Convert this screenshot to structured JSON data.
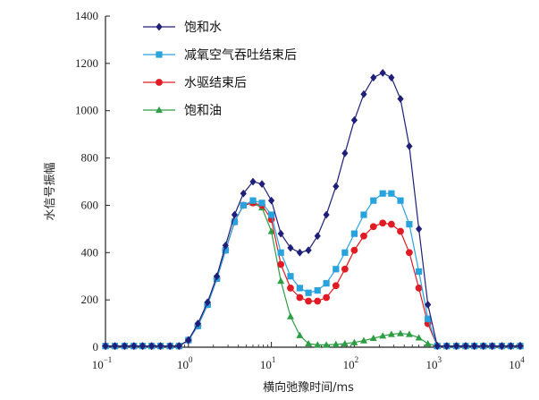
{
  "chart_data": {
    "type": "line",
    "xscale": "log",
    "xlim": [
      0.1,
      10000
    ],
    "ylim": [
      0,
      1400
    ],
    "yticks": [
      0,
      200,
      400,
      600,
      800,
      1000,
      1200,
      1400
    ],
    "xticks": [
      {
        "value": 0.1,
        "base": "10",
        "exp": "−1"
      },
      {
        "value": 1,
        "base": "10",
        "exp": "0"
      },
      {
        "value": 10,
        "base": "10",
        "exp": "1"
      },
      {
        "value": 100,
        "base": "10",
        "exp": "2"
      },
      {
        "value": 1000,
        "base": "10",
        "exp": "3"
      },
      {
        "value": 10000,
        "base": "10",
        "exp": "4"
      }
    ],
    "xlabel": "横向弛豫时间/ms",
    "ylabel": "水信号振幅",
    "legend_position": "top-left",
    "x": [
      0.1,
      0.13,
      0.17,
      0.22,
      0.28,
      0.36,
      0.46,
      0.6,
      0.77,
      1.0,
      1.3,
      1.7,
      2.2,
      2.8,
      3.6,
      4.6,
      6.0,
      7.7,
      10,
      13,
      17,
      22,
      28,
      36,
      46,
      60,
      77,
      100,
      130,
      170,
      220,
      280,
      360,
      460,
      600,
      770,
      1000,
      1300,
      1700,
      2200,
      2800,
      3600,
      4600,
      6000,
      7700,
      10000
    ],
    "series": [
      {
        "name": "饱和水",
        "color": "#1f1f7a",
        "marker": "diamond",
        "values": [
          5,
          5,
          5,
          5,
          5,
          5,
          5,
          5,
          5,
          30,
          100,
          190,
          300,
          430,
          560,
          650,
          700,
          690,
          620,
          480,
          420,
          400,
          410,
          470,
          560,
          680,
          820,
          960,
          1070,
          1140,
          1160,
          1140,
          1050,
          850,
          500,
          180,
          5,
          5,
          5,
          5,
          5,
          5,
          5,
          5,
          5,
          5
        ]
      },
      {
        "name": "减氧空气吞吐结束后",
        "color": "#29a3dd",
        "marker": "square",
        "values": [
          5,
          5,
          5,
          5,
          5,
          5,
          5,
          5,
          5,
          30,
          90,
          180,
          290,
          410,
          530,
          600,
          620,
          610,
          560,
          400,
          300,
          250,
          230,
          240,
          270,
          330,
          400,
          480,
          560,
          620,
          650,
          650,
          620,
          520,
          320,
          120,
          5,
          5,
          5,
          5,
          5,
          5,
          5,
          5,
          5,
          5
        ]
      },
      {
        "name": "水驱结束后",
        "color": "#e01b24",
        "marker": "circle",
        "values": [
          5,
          5,
          5,
          5,
          5,
          5,
          5,
          5,
          5,
          30,
          90,
          180,
          290,
          410,
          530,
          600,
          610,
          600,
          540,
          350,
          250,
          210,
          195,
          195,
          210,
          260,
          330,
          410,
          470,
          510,
          525,
          520,
          490,
          400,
          250,
          100,
          5,
          5,
          5,
          5,
          5,
          5,
          5,
          5,
          5,
          5
        ]
      },
      {
        "name": "饱和油",
        "color": "#2e9e44",
        "marker": "triangle",
        "values": [
          5,
          5,
          5,
          5,
          5,
          5,
          5,
          5,
          5,
          30,
          90,
          180,
          290,
          410,
          530,
          600,
          610,
          590,
          490,
          280,
          130,
          50,
          15,
          10,
          10,
          12,
          15,
          20,
          28,
          38,
          48,
          55,
          58,
          55,
          40,
          15,
          5,
          5,
          5,
          5,
          5,
          5,
          5,
          5,
          5,
          5
        ]
      }
    ]
  }
}
